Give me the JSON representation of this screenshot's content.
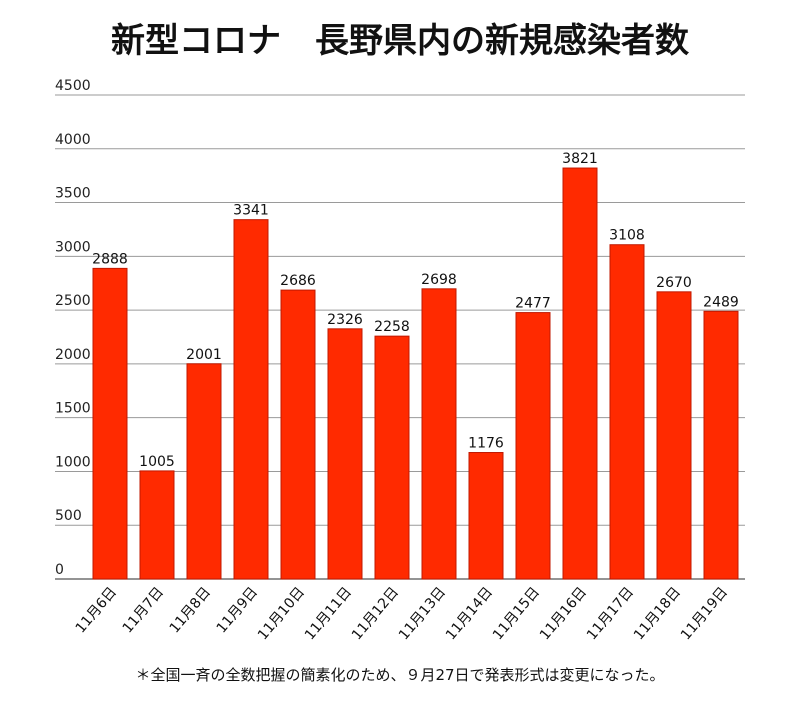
{
  "chart_data": {
    "type": "bar",
    "title": "新型コロナ　長野県内の新規感染者数",
    "xlabel": "",
    "ylabel": "",
    "categories": [
      "11月6日",
      "11月7日",
      "11月8日",
      "11月9日",
      "11月10日",
      "11月11日",
      "11月12日",
      "11月13日",
      "11月14日",
      "11月15日",
      "11月16日",
      "11月17日",
      "11月18日",
      "11月19日"
    ],
    "values": [
      2888,
      1005,
      2001,
      3341,
      2686,
      2326,
      2258,
      2698,
      1176,
      2477,
      3821,
      3108,
      2670,
      2489
    ],
    "ylim": [
      0,
      4500
    ],
    "yticks": [
      0,
      500,
      1000,
      1500,
      2000,
      2500,
      3000,
      3500,
      4000,
      4500
    ],
    "grid": true,
    "legend": "none",
    "colors": {
      "bar": "#ff2a00",
      "bar_edge": "#c01800",
      "grid": "#9a9a9a",
      "baseline": "#555555"
    }
  },
  "footnote": "＊全国一斉の全数把握の簡素化のため、９月27日で発表形式は変更になった。"
}
